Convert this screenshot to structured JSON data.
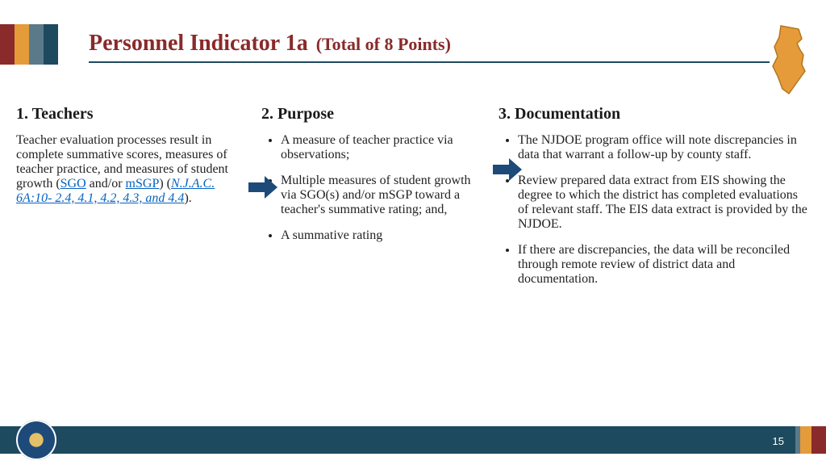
{
  "title": {
    "main": "Personnel Indicator 1a",
    "sub": "(Total of 8 Points)",
    "main_fontsize": 28,
    "main_color": "#8a2a2a",
    "sub_fontsize": 22,
    "sub_color": "#8a2a2a"
  },
  "header_stripes": [
    {
      "color": "#8a2a2a",
      "width": 18
    },
    {
      "color": "#e59b3a",
      "width": 18
    },
    {
      "color": "#5a7a8a",
      "width": 18
    },
    {
      "color": "#1e4a5f",
      "width": 18
    }
  ],
  "columns": {
    "col1": {
      "heading": "1. Teachers",
      "heading_fontsize": 20,
      "body_fontsize": 16,
      "body_pre": "Teacher evaluation processes result in complete summative scores, measures of teacher practice, and measures of student growth (",
      "link1": "SGO",
      "mid1": " and/or ",
      "link2": "mSGP",
      "mid2": ") (",
      "link3": "N.J.A.C. 6A:10- 2.4, 4.1, 4.2, 4.3, and 4.4",
      "end": ")."
    },
    "col2": {
      "heading": "2.  Purpose",
      "heading_fontsize": 20,
      "body_fontsize": 16,
      "bullets": [
        "A measure of teacher practice via observations;",
        "Multiple measures of student growth via SGO(s) and/or mSGP toward a teacher's summative rating; and,",
        "A summative rating"
      ]
    },
    "col3": {
      "heading": "3.  Documentation",
      "heading_fontsize": 20,
      "body_fontsize": 16,
      "bullets": [
        "The NJDOE program office will note discrepancies in data that warrant a follow-up by county staff.",
        "Review prepared data extract from EIS showing the degree to which the district has completed evaluations of relevant staff. The EIS data extract is provided by the NJDOE.",
        "If there are discrepancies, the data will be reconciled through remote review of district data and documentation."
      ]
    }
  },
  "arrows": {
    "color": "#1e4a7a",
    "width": 40,
    "height": 28
  },
  "nj_shape": {
    "fill": "#e59b3a",
    "stroke": "#b5761f"
  },
  "footer": {
    "page_number": "15",
    "stripes": [
      {
        "color": "#1e4a5f",
        "flex": "1"
      },
      {
        "color": "#5a7a8a",
        "width": 6
      },
      {
        "color": "#e59b3a",
        "width": 14
      },
      {
        "color": "#8a2a2a",
        "width": 18
      }
    ]
  }
}
